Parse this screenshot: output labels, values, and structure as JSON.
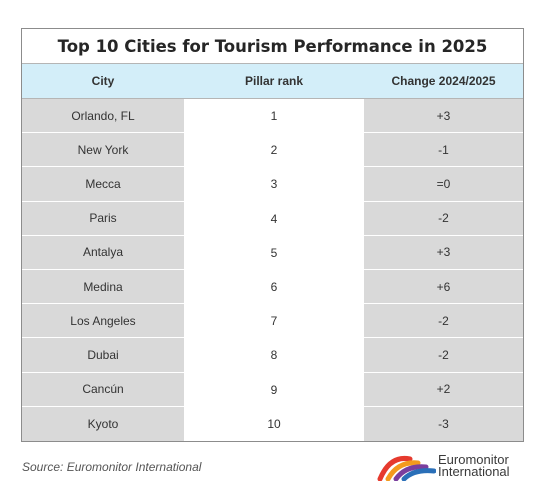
{
  "table": {
    "title": "Top 10 Cities for Tourism Performance in 2025",
    "headers": [
      "City",
      "Pillar rank",
      "Change 2024/2025"
    ],
    "rows": [
      {
        "city": "Orlando, FL",
        "rank": "1",
        "change": "+3"
      },
      {
        "city": "New York",
        "rank": "2",
        "change": "-1"
      },
      {
        "city": "Mecca",
        "rank": "3",
        "change": "=0"
      },
      {
        "city": "Paris",
        "rank": "4",
        "change": "-2"
      },
      {
        "city": "Antalya",
        "rank": "5",
        "change": "+3"
      },
      {
        "city": "Medina",
        "rank": "6",
        "change": "+6"
      },
      {
        "city": "Los Angeles",
        "rank": "7",
        "change": "-2"
      },
      {
        "city": "Dubai",
        "rank": "8",
        "change": "-2"
      },
      {
        "city": "Cancún",
        "rank": "9",
        "change": "+2"
      },
      {
        "city": "Kyoto",
        "rank": "10",
        "change": "-3"
      }
    ]
  },
  "chart_data": {
    "type": "table",
    "title": "Top 10 Cities for Tourism Performance in 2025",
    "columns": [
      "City",
      "Pillar rank",
      "Change 2024/2025"
    ],
    "rows": [
      [
        "Orlando, FL",
        1,
        "+3"
      ],
      [
        "New York",
        2,
        "-1"
      ],
      [
        "Mecca",
        3,
        "=0"
      ],
      [
        "Paris",
        4,
        "-2"
      ],
      [
        "Antalya",
        5,
        "+3"
      ],
      [
        "Medina",
        6,
        "+6"
      ],
      [
        "Los Angeles",
        7,
        "-2"
      ],
      [
        "Dubai",
        8,
        "-2"
      ],
      [
        "Cancún",
        9,
        "+2"
      ],
      [
        "Kyoto",
        10,
        "-3"
      ]
    ]
  },
  "footer": {
    "source": "Source: Euromonitor International",
    "logo_line1": "Euromonitor",
    "logo_line2": "International",
    "logo_icon": "euromonitor-arc-logo"
  },
  "colors": {
    "header_bg": "#d3eef9",
    "side_column_bg": "#d9d9d9",
    "border": "#8c8c8c"
  }
}
